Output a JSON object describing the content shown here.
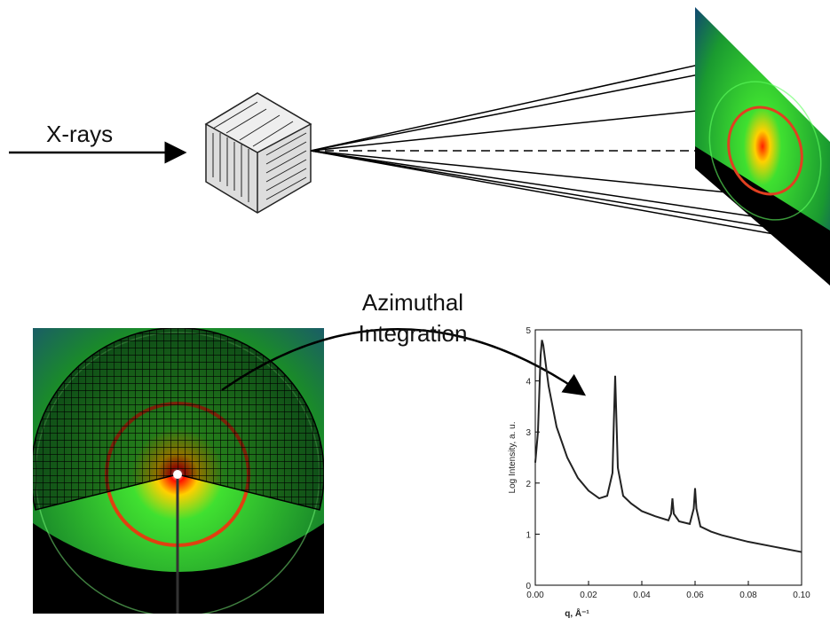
{
  "labels": {
    "xrays": "X-rays",
    "integration": [
      "Azimuthal",
      "Integration"
    ]
  },
  "chart_data": {
    "type": "line",
    "x_label": "q, Å⁻¹",
    "y_label": "Log Intensity, a. u.",
    "xlim": [
      0,
      0.1
    ],
    "xticks": [
      {
        "value": 0,
        "label": "0.00"
      },
      {
        "value": 0.02,
        "label": "0.02"
      },
      {
        "value": 0.04,
        "label": "0.04"
      },
      {
        "value": 0.06,
        "label": "0.06"
      },
      {
        "value": 0.08,
        "label": "0.08"
      },
      {
        "value": 0.1,
        "label": "0.10"
      }
    ],
    "ylim": [
      0,
      5
    ],
    "yticks": [
      0,
      1,
      2,
      3,
      4,
      5
    ],
    "color": "#222222",
    "x": [
      0,
      0.001,
      0.002,
      0.0025,
      0.003,
      0.005,
      0.008,
      0.012,
      0.016,
      0.02,
      0.024,
      0.027,
      0.029,
      0.0295,
      0.03,
      0.0305,
      0.031,
      0.033,
      0.036,
      0.04,
      0.045,
      0.05,
      0.051,
      0.0515,
      0.052,
      0.054,
      0.058,
      0.0595,
      0.06,
      0.0605,
      0.062,
      0.066,
      0.07,
      0.08,
      0.09,
      0.1
    ],
    "values": [
      2.4,
      3.0,
      4.5,
      4.8,
      4.7,
      3.9,
      3.1,
      2.5,
      2.1,
      1.85,
      1.7,
      1.75,
      2.2,
      3.2,
      4.1,
      3.2,
      2.3,
      1.75,
      1.6,
      1.45,
      1.35,
      1.27,
      1.4,
      1.7,
      1.4,
      1.25,
      1.2,
      1.5,
      1.9,
      1.5,
      1.15,
      1.05,
      0.98,
      0.85,
      0.75,
      0.65
    ]
  }
}
